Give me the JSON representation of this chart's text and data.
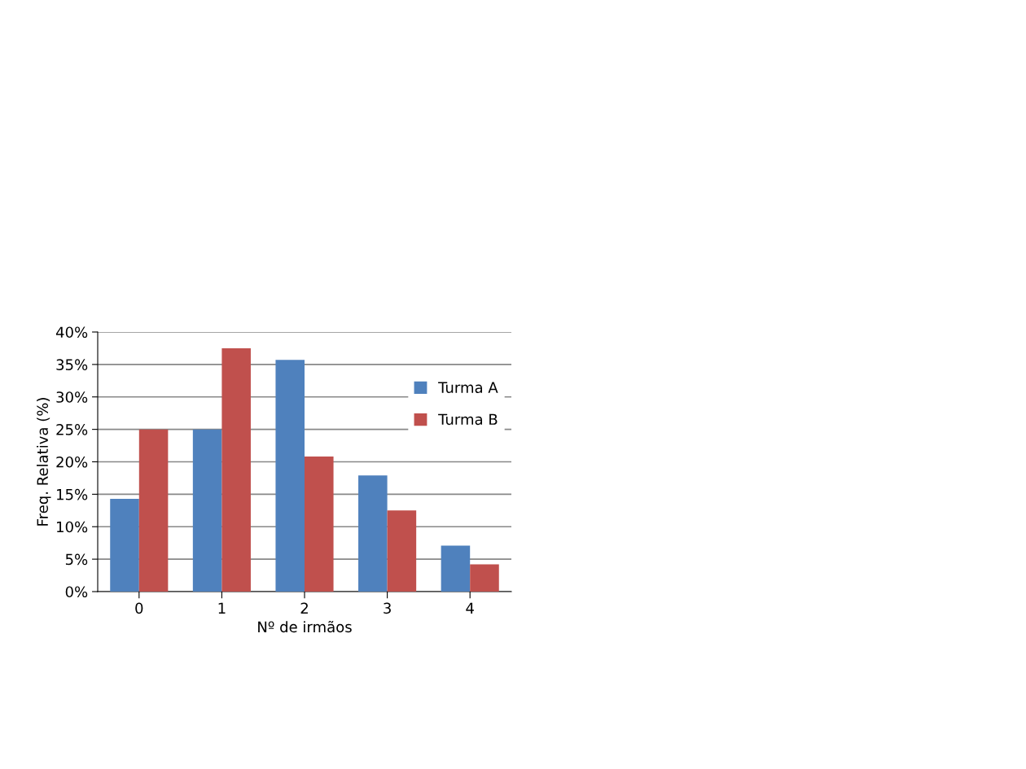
{
  "chart_data": {
    "type": "bar",
    "xlabel": "Nº de irmãos",
    "ylabel": "Freq. Relativa (%)",
    "categories": [
      "0",
      "1",
      "2",
      "3",
      "4"
    ],
    "series": [
      {
        "name": "Turma A",
        "color": "#4f81bd",
        "values": [
          14.3,
          25,
          35.7,
          17.9,
          7.1
        ]
      },
      {
        "name": "Turma B",
        "color": "#c0504d",
        "values": [
          25,
          37.5,
          20.8,
          12.5,
          4.2
        ]
      }
    ],
    "ylim": [
      0,
      40
    ],
    "yticks": [
      {
        "value": 0,
        "label": "0%"
      },
      {
        "value": 5,
        "label": "5%"
      },
      {
        "value": 10,
        "label": "10%"
      },
      {
        "value": 15,
        "label": "15%"
      },
      {
        "value": 20,
        "label": "20%"
      },
      {
        "value": 25,
        "label": "25%"
      },
      {
        "value": 30,
        "label": "30%"
      },
      {
        "value": 35,
        "label": "35%"
      },
      {
        "value": 40,
        "label": "40%"
      }
    ],
    "grid": "y",
    "legend": "right"
  }
}
